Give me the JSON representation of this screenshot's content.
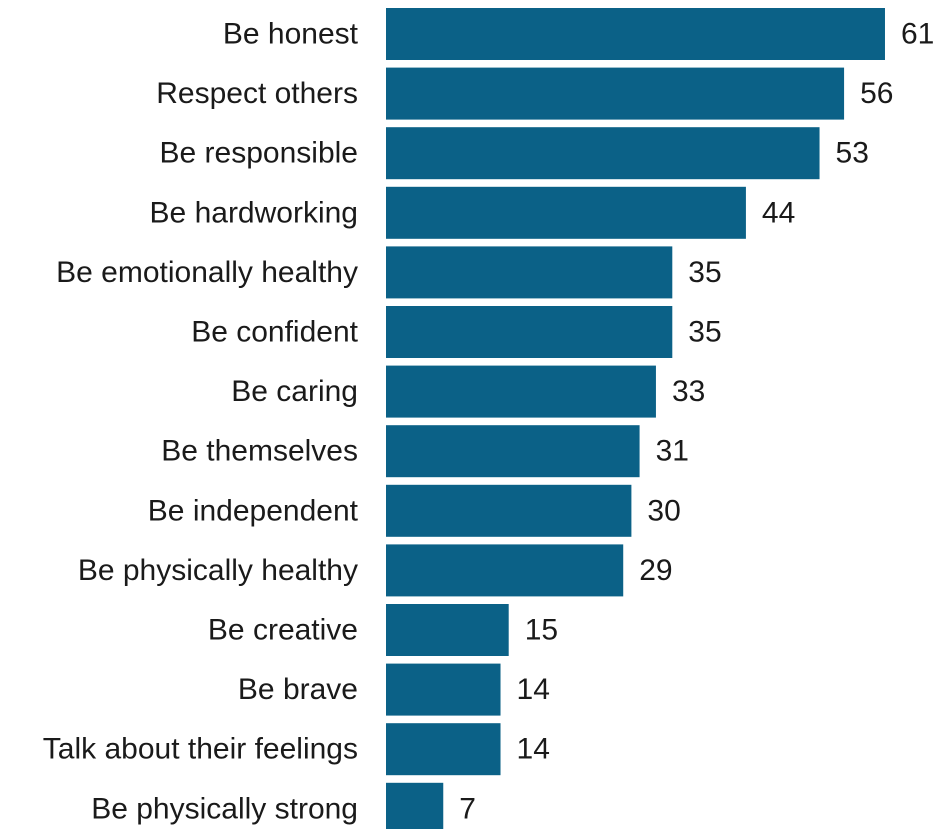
{
  "chart_data": {
    "type": "bar",
    "orientation": "horizontal",
    "categories": [
      "Be honest",
      "Respect others",
      "Be responsible",
      "Be hardworking",
      "Be emotionally healthy",
      "Be confident",
      "Be caring",
      "Be themselves",
      "Be independent",
      "Be physically healthy",
      "Be creative",
      "Be brave",
      "Talk about their feelings",
      "Be physically strong"
    ],
    "values": [
      61,
      56,
      53,
      44,
      35,
      35,
      33,
      31,
      30,
      29,
      15,
      14,
      14,
      7
    ],
    "title": "",
    "xlabel": "",
    "ylabel": "",
    "xlim": [
      0,
      61
    ],
    "grid": false,
    "legend": "none",
    "bar_color": "#0b6187",
    "data_labels": true
  }
}
